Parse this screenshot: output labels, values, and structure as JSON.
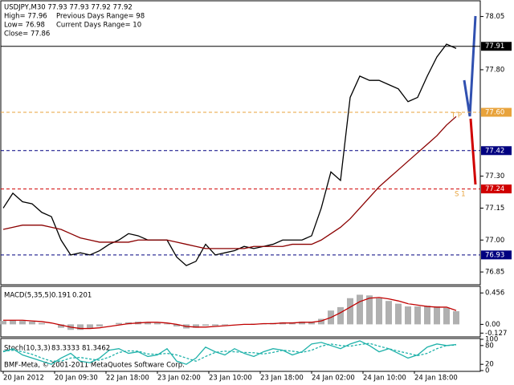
{
  "chart_data": [
    {
      "type": "line",
      "title": "USDJPY,M30  77.93 77.93 77.92 77.92",
      "info": [
        "High= 77.96",
        "Previous Days Range= 98",
        "Low= 76.98",
        "Current Days Range= 10",
        "Close= 77.86"
      ],
      "x_labels": [
        "20 Jan 2012",
        "20 Jan 09:30",
        "22 Jan 18:00",
        "23 Jan 02:00",
        "23 Jan 10:00",
        "23 Jan 18:00",
        "24 Jan 02:00",
        "24 Jan 10:00",
        "24 Jan 18:00"
      ],
      "series": [
        {
          "color": "#000000",
          "values": [
            77.15,
            77.22,
            77.18,
            77.17,
            77.13,
            77.11,
            77.0,
            76.93,
            76.94,
            76.93,
            76.95,
            76.98,
            77.0,
            77.03,
            77.02,
            77.0,
            77.0,
            77.0,
            76.92,
            76.88,
            76.9,
            76.98,
            76.93,
            76.94,
            76.95,
            76.97,
            76.96,
            76.97,
            76.98,
            77.0,
            77.0,
            77.0,
            77.02,
            77.15,
            77.32,
            77.28,
            77.67,
            77.77,
            77.75,
            77.75,
            77.73,
            77.71,
            77.65,
            77.67,
            77.77,
            77.86,
            77.92,
            77.9
          ]
        },
        {
          "color": "#8b0000",
          "values": [
            77.05,
            77.06,
            77.07,
            77.07,
            77.07,
            77.06,
            77.05,
            77.03,
            77.01,
            77.0,
            76.99,
            76.99,
            76.99,
            76.99,
            77.0,
            77.0,
            77.0,
            77.0,
            76.99,
            76.98,
            76.97,
            76.96,
            76.96,
            76.96,
            76.96,
            76.96,
            76.97,
            76.97,
            76.97,
            76.97,
            76.98,
            76.98,
            76.98,
            77.0,
            77.03,
            77.06,
            77.1,
            77.15,
            77.2,
            77.25,
            77.29,
            77.33,
            77.37,
            77.41,
            77.45,
            77.49,
            77.54,
            77.58
          ]
        }
      ],
      "levels": [
        {
          "value": 77.91,
          "color": "#000000",
          "dash": false
        },
        {
          "value": {
            "value": 77.6,
            "label": "77.60"
          },
          "color": "#e8a33c",
          "dash": true
        },
        {
          "value": 77.42,
          "color": "#000080",
          "dash": true
        },
        {
          "value": 77.24,
          "color": "#d00000",
          "dash": true
        },
        {
          "value": 76.93,
          "color": "#000080",
          "dash": true
        }
      ],
      "annotations": [
        "T P",
        "S 1"
      ],
      "ylim": [
        76.79,
        78.12
      ],
      "yticks": [
        78.05,
        {
          "value": 77.8,
          "label": "77.80"
        },
        {
          "value": 77.3,
          "label": "77.30"
        },
        77.15,
        {
          "value": 77,
          "label": "77.00"
        },
        76.85
      ]
    },
    {
      "type": "bar",
      "title": "MACD(5,35,5)",
      "series": [
        {
          "color": "#b0b0b0",
          "values": [
            0.05,
            0.06,
            0.05,
            0.04,
            0.02,
            0.0,
            -0.05,
            -0.08,
            -0.08,
            -0.06,
            -0.03,
            0.0,
            0.02,
            0.03,
            0.04,
            0.03,
            0.02,
            0.01,
            -0.03,
            -0.06,
            -0.05,
            -0.02,
            -0.02,
            -0.01,
            0.0,
            0.0,
            0.01,
            0.01,
            0.02,
            0.03,
            0.03,
            0.04,
            0.04,
            0.08,
            0.2,
            0.25,
            0.38,
            0.43,
            0.42,
            0.38,
            0.34,
            0.3,
            0.26,
            0.26,
            0.27,
            0.26,
            0.24,
            0.191
          ]
        },
        {
          "color": "#c00000",
          "values": [
            0.06,
            0.06,
            0.06,
            0.05,
            0.04,
            0.02,
            -0.01,
            -0.04,
            -0.06,
            -0.06,
            -0.05,
            -0.03,
            -0.01,
            0.01,
            0.02,
            0.03,
            0.03,
            0.02,
            0.0,
            -0.03,
            -0.04,
            -0.04,
            -0.03,
            -0.02,
            -0.01,
            0.0,
            0.0,
            0.01,
            0.01,
            0.02,
            0.02,
            0.03,
            0.03,
            0.05,
            0.1,
            0.17,
            0.25,
            0.33,
            0.38,
            0.39,
            0.37,
            0.34,
            0.3,
            0.28,
            0.26,
            0.25,
            0.25,
            0.201
          ]
        }
      ],
      "ylim": [
        -0.17,
        0.54
      ],
      "yticks": [
        0.456,
        {
          "value": 0,
          "label": "0.00"
        },
        -0.127
      ]
    },
    {
      "type": "line",
      "title": "Stoch(10,3,3)",
      "footer": "BMF-Meta, © 2001-2011 MetaQuotes Software Corp.",
      "series": [
        {
          "color": "#20b2aa",
          "values": [
            60,
            70,
            50,
            40,
            30,
            20,
            40,
            55,
            30,
            25,
            40,
            65,
            70,
            55,
            60,
            45,
            50,
            70,
            30,
            20,
            40,
            75,
            60,
            50,
            70,
            55,
            45,
            60,
            70,
            65,
            50,
            60,
            85,
            90,
            80,
            70,
            85,
            95,
            80,
            60,
            70,
            55,
            40,
            50,
            75,
            85,
            80,
            83.3333
          ]
        },
        {
          "color": "#20b2aa",
          "dash": true,
          "values": [
            62,
            65,
            60,
            52,
            40,
            30,
            30,
            40,
            42,
            37,
            33,
            43,
            58,
            63,
            62,
            53,
            52,
            55,
            50,
            40,
            30,
            45,
            58,
            62,
            60,
            58,
            57,
            53,
            58,
            65,
            62,
            58,
            65,
            78,
            85,
            80,
            78,
            83,
            87,
            78,
            70,
            62,
            55,
            48,
            55,
            70,
            80,
            81.3462
          ]
        }
      ],
      "ylim": [
        0,
        100
      ],
      "yticks": [
        100,
        80,
        20,
        0
      ]
    }
  ]
}
